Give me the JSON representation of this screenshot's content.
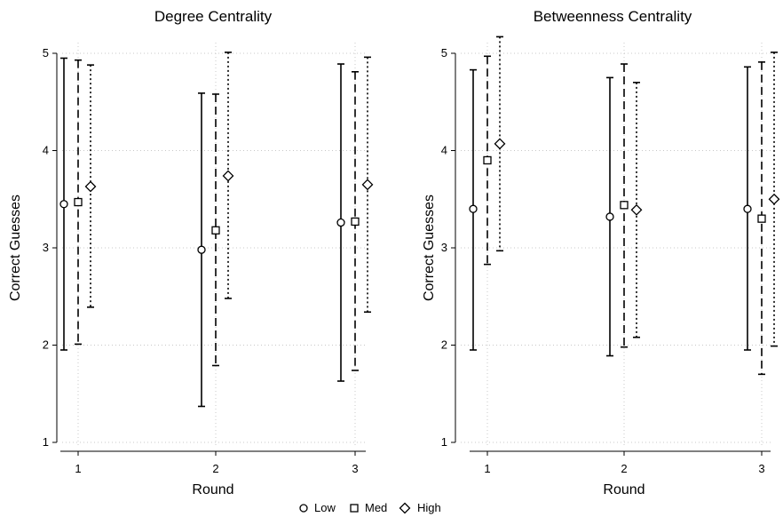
{
  "chart_data": [
    {
      "type": "error-bar",
      "title": "Degree Centrality",
      "xlabel": "Round",
      "ylabel": "Correct Guesses",
      "categories": [
        "1",
        "2",
        "3"
      ],
      "ylim": [
        1,
        5
      ],
      "yticks": [
        "1",
        "2",
        "3",
        "4",
        "5"
      ],
      "grid": true,
      "series": [
        {
          "name": "Low",
          "values": [
            3.45,
            2.98,
            3.26
          ],
          "lower": [
            1.95,
            1.37,
            1.63
          ],
          "upper": [
            4.95,
            4.59,
            4.89
          ]
        },
        {
          "name": "Med",
          "values": [
            3.47,
            3.18,
            3.27
          ],
          "lower": [
            2.01,
            1.79,
            1.74
          ],
          "upper": [
            4.93,
            4.58,
            4.81
          ]
        },
        {
          "name": "High",
          "values": [
            3.63,
            3.74,
            3.65
          ],
          "lower": [
            2.39,
            2.48,
            2.34
          ],
          "upper": [
            4.88,
            5.01,
            4.96
          ]
        }
      ]
    },
    {
      "type": "error-bar",
      "title": "Betweenness Centrality",
      "xlabel": "Round",
      "ylabel": "Correct Guesses",
      "categories": [
        "1",
        "2",
        "3"
      ],
      "ylim": [
        1,
        5
      ],
      "yticks": [
        "1",
        "2",
        "3",
        "4",
        "5"
      ],
      "grid": true,
      "series": [
        {
          "name": "Low",
          "values": [
            3.4,
            3.32,
            3.4
          ],
          "lower": [
            1.95,
            1.89,
            1.95
          ],
          "upper": [
            4.83,
            4.75,
            4.86
          ]
        },
        {
          "name": "Med",
          "values": [
            3.9,
            3.44,
            3.3
          ],
          "lower": [
            2.83,
            1.98,
            1.7
          ],
          "upper": [
            4.97,
            4.89,
            4.91
          ]
        },
        {
          "name": "High",
          "values": [
            4.07,
            3.39,
            3.5
          ],
          "lower": [
            2.97,
            2.08,
            1.99
          ],
          "upper": [
            5.17,
            4.7,
            5.01
          ]
        }
      ]
    }
  ],
  "legend": {
    "position": "bottom",
    "items": [
      {
        "label": "Low",
        "marker": "circle-icon"
      },
      {
        "label": "Med",
        "marker": "square-icon"
      },
      {
        "label": "High",
        "marker": "diamond-icon"
      }
    ]
  }
}
